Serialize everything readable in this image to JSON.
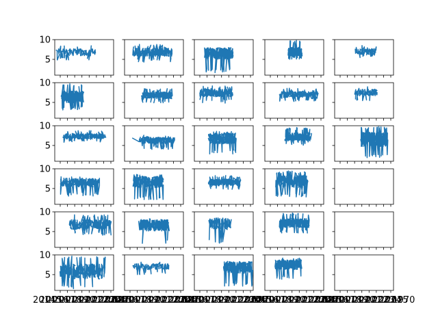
{
  "chart_data": {
    "type": "line",
    "layout": {
      "rows": 6,
      "cols": 5
    },
    "shared_y": true,
    "ylim": [
      1,
      10
    ],
    "yticks": [
      5,
      10
    ],
    "x_axis_type": "date",
    "xtick_labels_overlapping_row6": [
      "2014",
      "2015",
      "2016",
      "2017",
      "2018",
      "2019",
      "2020",
      "2021",
      "2022",
      "2023",
      "2024",
      "2025",
      "1970"
    ],
    "series_color": "#1f77b4",
    "panels": [
      {
        "id": "r1c1",
        "empty": false,
        "x_start": 0.05,
        "x_end": 0.7,
        "y_low": 4.5,
        "y_high": 8.5,
        "y_mean": 6.8,
        "dense": false,
        "lead_in": true
      },
      {
        "id": "r1c2",
        "empty": false,
        "x_start": 0.15,
        "x_end": 0.8,
        "y_low": 4.2,
        "y_high": 8.8,
        "y_mean": 6.8,
        "dense": true
      },
      {
        "id": "r1c3",
        "empty": false,
        "x_start": 0.18,
        "x_end": 0.65,
        "y_low": 1.6,
        "y_high": 8.0,
        "y_mean": 6.5,
        "dense": true
      },
      {
        "id": "r1c4",
        "empty": false,
        "x_start": 0.4,
        "x_end": 0.62,
        "y_low": 5.0,
        "y_high": 9.8,
        "y_mean": 7.0,
        "dense": true
      },
      {
        "id": "r1c5",
        "empty": false,
        "x_start": 0.35,
        "x_end": 0.7,
        "y_low": 5.4,
        "y_high": 8.6,
        "y_mean": 7.0,
        "dense": false
      },
      {
        "id": "r2c1",
        "empty": false,
        "x_start": 0.12,
        "x_end": 0.48,
        "y_low": 3.0,
        "y_high": 9.8,
        "y_mean": 6.4,
        "dense": true
      },
      {
        "id": "r2c2",
        "empty": false,
        "x_start": 0.3,
        "x_end": 0.8,
        "y_low": 4.8,
        "y_high": 8.6,
        "y_mean": 6.8,
        "dense": true
      },
      {
        "id": "r2c3",
        "empty": false,
        "x_start": 0.1,
        "x_end": 0.65,
        "y_low": 4.8,
        "y_high": 9.2,
        "y_mean": 7.4,
        "dense": true
      },
      {
        "id": "r2c4",
        "empty": false,
        "x_start": 0.25,
        "x_end": 0.9,
        "y_low": 5.2,
        "y_high": 8.6,
        "y_mean": 7.0,
        "dense": true
      },
      {
        "id": "r2c5",
        "empty": false,
        "x_start": 0.35,
        "x_end": 0.72,
        "y_low": 5.4,
        "y_high": 9.0,
        "y_mean": 7.5,
        "dense": false
      },
      {
        "id": "r3c1",
        "empty": false,
        "x_start": 0.15,
        "x_end": 0.85,
        "y_low": 5.8,
        "y_high": 8.8,
        "y_mean": 7.3,
        "dense": true
      },
      {
        "id": "r3c2",
        "empty": false,
        "x_start": 0.25,
        "x_end": 0.85,
        "y_low": 4.0,
        "y_high": 7.6,
        "y_mean": 6.3,
        "dense": true,
        "lead_in": true
      },
      {
        "id": "r3c3",
        "empty": false,
        "x_start": 0.25,
        "x_end": 0.7,
        "y_low": 2.8,
        "y_high": 8.8,
        "y_mean": 6.8,
        "dense": true
      },
      {
        "id": "r3c4",
        "empty": false,
        "x_start": 0.35,
        "x_end": 0.78,
        "y_low": 5.0,
        "y_high": 9.6,
        "y_mean": 7.2,
        "dense": true
      },
      {
        "id": "r3c5",
        "empty": false,
        "x_start": 0.45,
        "x_end": 0.9,
        "y_low": 1.8,
        "y_high": 9.8,
        "y_mean": 6.5,
        "dense": true
      },
      {
        "id": "r4c1",
        "empty": false,
        "x_start": 0.1,
        "x_end": 0.75,
        "y_low": 3.0,
        "y_high": 8.0,
        "y_mean": 6.5,
        "dense": true
      },
      {
        "id": "r4c2",
        "empty": false,
        "x_start": 0.15,
        "x_end": 0.65,
        "y_low": 2.2,
        "y_high": 8.6,
        "y_mean": 6.7,
        "dense": true
      },
      {
        "id": "r4c3",
        "empty": false,
        "x_start": 0.25,
        "x_end": 0.78,
        "y_low": 4.8,
        "y_high": 8.4,
        "y_mean": 6.6,
        "dense": true
      },
      {
        "id": "r4c4",
        "empty": false,
        "x_start": 0.2,
        "x_end": 0.72,
        "y_low": 2.8,
        "y_high": 9.6,
        "y_mean": 6.8,
        "dense": true
      },
      {
        "id": "r4c5",
        "empty": true
      },
      {
        "id": "r5c1",
        "empty": false,
        "x_start": 0.25,
        "x_end": 0.95,
        "y_low": 4.0,
        "y_high": 9.4,
        "y_mean": 6.8,
        "dense": true
      },
      {
        "id": "r5c2",
        "empty": false,
        "x_start": 0.25,
        "x_end": 0.75,
        "y_low": 2.0,
        "y_high": 8.4,
        "y_mean": 6.6,
        "dense": true
      },
      {
        "id": "r5c3",
        "empty": false,
        "x_start": 0.25,
        "x_end": 0.62,
        "y_low": 2.0,
        "y_high": 8.6,
        "y_mean": 7.0,
        "dense": false
      },
      {
        "id": "r5c4",
        "empty": false,
        "x_start": 0.25,
        "x_end": 0.75,
        "y_low": 4.6,
        "y_high": 9.8,
        "y_mean": 7.2,
        "dense": true
      },
      {
        "id": "r5c5",
        "empty": true
      },
      {
        "id": "r6c1",
        "empty": false,
        "x_start": 0.1,
        "x_end": 0.85,
        "y_low": 1.4,
        "y_high": 9.8,
        "y_mean": 5.8,
        "dense": true
      },
      {
        "id": "r6c2",
        "empty": false,
        "x_start": 0.15,
        "x_end": 0.75,
        "y_low": 5.0,
        "y_high": 8.4,
        "y_mean": 7.0,
        "dense": false
      },
      {
        "id": "r6c3",
        "empty": false,
        "x_start": 0.5,
        "x_end": 0.98,
        "y_low": 2.0,
        "y_high": 8.4,
        "y_mean": 6.8,
        "dense": true
      },
      {
        "id": "r6c4",
        "empty": false,
        "x_start": 0.18,
        "x_end": 0.62,
        "y_low": 3.8,
        "y_high": 9.2,
        "y_mean": 7.5,
        "dense": true
      },
      {
        "id": "r6c5",
        "empty": true
      }
    ]
  }
}
